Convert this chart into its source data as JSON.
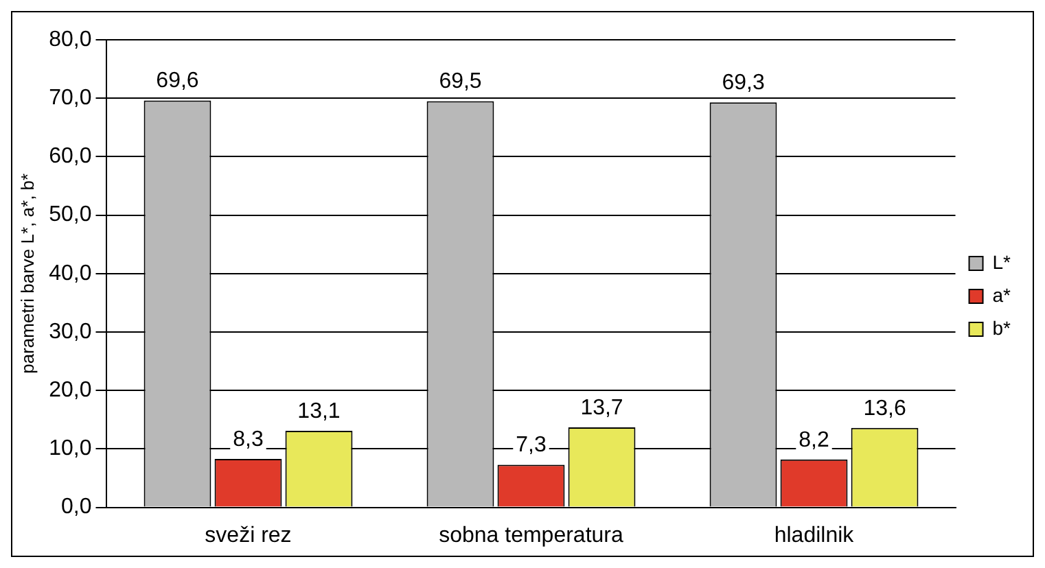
{
  "chart_data": {
    "type": "bar",
    "ylabel": "parametri barve L*, a*, b*",
    "categories": [
      "sveži rez",
      "sobna temperatura",
      "hladilnik"
    ],
    "series": [
      {
        "name": "L*",
        "color": "#b8b8b8",
        "values": [
          69.6,
          69.5,
          69.3
        ],
        "value_labels": [
          "69,6",
          "69,5",
          "69,3"
        ]
      },
      {
        "name": "a*",
        "color": "#e03a2a",
        "values": [
          8.3,
          7.3,
          8.2
        ],
        "value_labels": [
          "8,3",
          "7,3",
          "8,2"
        ]
      },
      {
        "name": "b*",
        "color": "#e8e85a",
        "values": [
          13.1,
          13.7,
          13.6
        ],
        "value_labels": [
          "13,1",
          "13,7",
          "13,6"
        ]
      }
    ],
    "ylim": [
      0,
      80
    ],
    "yticks": [
      {
        "value": 0,
        "label": "0,0"
      },
      {
        "value": 10,
        "label": "10,0"
      },
      {
        "value": 20,
        "label": "20,0"
      },
      {
        "value": 30,
        "label": "30,0"
      },
      {
        "value": 40,
        "label": "40,0"
      },
      {
        "value": 50,
        "label": "50,0"
      },
      {
        "value": 60,
        "label": "60,0"
      },
      {
        "value": 70,
        "label": "70,0"
      },
      {
        "value": 80,
        "label": "80,0"
      }
    ],
    "grid": "y",
    "legend": "right"
  }
}
